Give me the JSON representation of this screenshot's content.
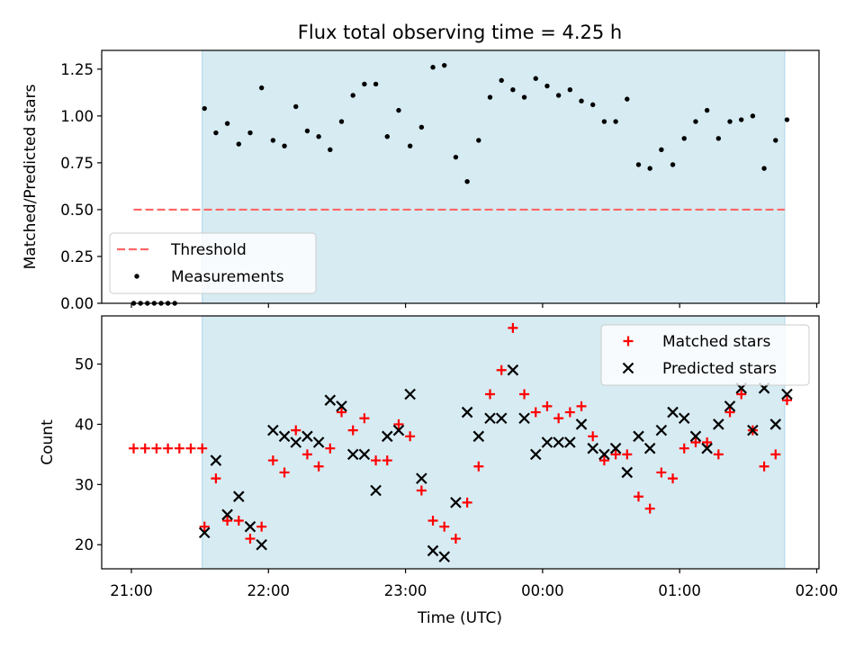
{
  "figure": {
    "title": "Flux total observing time = 4.25 h",
    "xlabel": "Time (UTC)"
  },
  "colors": {
    "shade": "#add8e6",
    "threshold": "#ff6666",
    "matched": "#ff0000",
    "predicted": "#000000",
    "measurements": "#000000"
  },
  "chart_data": [
    {
      "type": "scatter",
      "ylabel": "Matched/Predicted stars",
      "xlim": [
        "20:47",
        "02:01"
      ],
      "ylim": [
        0,
        1.35
      ],
      "yticks": [
        0.0,
        0.25,
        0.5,
        0.75,
        1.0,
        1.25
      ],
      "ytick_labels": [
        "0.00",
        "0.25",
        "0.50",
        "0.75",
        "1.00",
        "1.25"
      ],
      "xticks": [
        "21:00",
        "22:00",
        "23:00",
        "00:00",
        "01:00",
        "02:00"
      ],
      "shaded_span": [
        "21:31",
        "01:46"
      ],
      "legend": {
        "position": "lower-left",
        "entries": [
          "Threshold",
          "Measurements"
        ]
      },
      "threshold": {
        "name": "Threshold",
        "value": 0.5,
        "x_range": [
          "21:01",
          "01:46"
        ]
      },
      "series": [
        {
          "name": "Measurements",
          "x": [
            "21:01",
            "21:04",
            "21:07",
            "21:10",
            "21:13",
            "21:16",
            "21:19",
            "21:32",
            "21:37",
            "21:42",
            "21:47",
            "21:52",
            "21:57",
            "22:02",
            "22:07",
            "22:12",
            "22:17",
            "22:22",
            "22:27",
            "22:32",
            "22:37",
            "22:42",
            "22:47",
            "22:52",
            "22:57",
            "23:02",
            "23:07",
            "23:12",
            "23:17",
            "23:22",
            "23:27",
            "23:32",
            "23:37",
            "23:42",
            "23:47",
            "23:52",
            "23:57",
            "00:02",
            "00:07",
            "00:12",
            "00:17",
            "00:22",
            "00:27",
            "00:32",
            "00:37",
            "00:42",
            "00:47",
            "00:52",
            "00:57",
            "01:02",
            "01:07",
            "01:12",
            "01:17",
            "01:22",
            "01:27",
            "01:32",
            "01:37",
            "01:42",
            "01:47"
          ],
          "y": [
            0,
            0,
            0,
            0,
            0,
            0,
            0,
            1.04,
            0.91,
            0.96,
            0.85,
            0.91,
            1.15,
            0.87,
            0.84,
            1.05,
            0.92,
            0.89,
            0.82,
            0.97,
            1.11,
            1.17,
            1.17,
            0.89,
            1.03,
            0.84,
            0.94,
            1.26,
            1.27,
            0.78,
            0.65,
            0.87,
            1.1,
            1.19,
            1.14,
            1.1,
            1.2,
            1.16,
            1.11,
            1.14,
            1.08,
            1.06,
            0.97,
            0.97,
            1.09,
            0.74,
            0.72,
            0.82,
            0.74,
            0.88,
            0.97,
            1.03,
            0.88,
            0.97,
            0.98,
            1.0,
            0.72,
            0.87,
            0.98
          ]
        }
      ]
    },
    {
      "type": "scatter",
      "ylabel": "Count",
      "xlim": [
        "20:47",
        "02:01"
      ],
      "ylim": [
        16,
        58
      ],
      "yticks": [
        20,
        30,
        40,
        50
      ],
      "ytick_labels": [
        "20",
        "30",
        "40",
        "50"
      ],
      "xticks": [
        "21:00",
        "22:00",
        "23:00",
        "00:00",
        "01:00",
        "02:00"
      ],
      "xtick_labels": [
        "21:00",
        "22:00",
        "23:00",
        "00:00",
        "01:00",
        "02:00"
      ],
      "shaded_span": [
        "21:31",
        "01:46"
      ],
      "legend": {
        "position": "top-right",
        "entries": [
          "Matched stars",
          "Predicted stars"
        ]
      },
      "series": [
        {
          "name": "Matched stars",
          "marker": "plus",
          "x": [
            "21:01",
            "21:06",
            "21:11",
            "21:16",
            "21:21",
            "21:26",
            "21:31",
            "21:32",
            "21:37",
            "21:42",
            "21:47",
            "21:52",
            "21:57",
            "22:02",
            "22:07",
            "22:12",
            "22:17",
            "22:22",
            "22:27",
            "22:32",
            "22:37",
            "22:42",
            "22:47",
            "22:52",
            "22:57",
            "23:02",
            "23:07",
            "23:12",
            "23:17",
            "23:22",
            "23:27",
            "23:32",
            "23:37",
            "23:42",
            "23:47",
            "23:52",
            "23:57",
            "00:02",
            "00:07",
            "00:12",
            "00:17",
            "00:22",
            "00:27",
            "00:32",
            "00:37",
            "00:42",
            "00:47",
            "00:52",
            "00:57",
            "01:02",
            "01:07",
            "01:12",
            "01:17",
            "01:22",
            "01:27",
            "01:32",
            "01:37",
            "01:42",
            "01:47"
          ],
          "y": [
            36,
            36,
            36,
            36,
            36,
            36,
            36,
            23,
            31,
            24,
            24,
            21,
            23,
            34,
            32,
            39,
            35,
            33,
            36,
            42,
            39,
            41,
            34,
            34,
            40,
            38,
            29,
            24,
            23,
            21,
            27,
            33,
            45,
            49,
            56,
            45,
            42,
            43,
            41,
            42,
            43,
            38,
            34,
            35,
            35,
            28,
            26,
            32,
            31,
            36,
            37,
            37,
            35,
            42,
            45,
            39,
            33,
            35,
            44
          ]
        },
        {
          "name": "Predicted stars",
          "marker": "x",
          "x": [
            "21:32",
            "21:37",
            "21:42",
            "21:47",
            "21:52",
            "21:57",
            "22:02",
            "22:07",
            "22:12",
            "22:17",
            "22:22",
            "22:27",
            "22:32",
            "22:37",
            "22:42",
            "22:47",
            "22:52",
            "22:57",
            "23:02",
            "23:07",
            "23:12",
            "23:17",
            "23:22",
            "23:27",
            "23:32",
            "23:37",
            "23:42",
            "23:47",
            "23:52",
            "23:57",
            "00:02",
            "00:07",
            "00:12",
            "00:17",
            "00:22",
            "00:27",
            "00:32",
            "00:37",
            "00:42",
            "00:47",
            "00:52",
            "00:57",
            "01:02",
            "01:07",
            "01:12",
            "01:17",
            "01:22",
            "01:27",
            "01:32",
            "01:37",
            "01:42",
            "01:47"
          ],
          "y": [
            22,
            34,
            25,
            28,
            23,
            20,
            39,
            38,
            37,
            38,
            37,
            44,
            43,
            35,
            35,
            29,
            38,
            39,
            45,
            31,
            19,
            18,
            27,
            42,
            38,
            41,
            41,
            49,
            41,
            35,
            37,
            37,
            37,
            40,
            36,
            35,
            36,
            32,
            38,
            36,
            39,
            42,
            41,
            38,
            36,
            40,
            43,
            46,
            39,
            46,
            40,
            45
          ]
        }
      ]
    }
  ]
}
